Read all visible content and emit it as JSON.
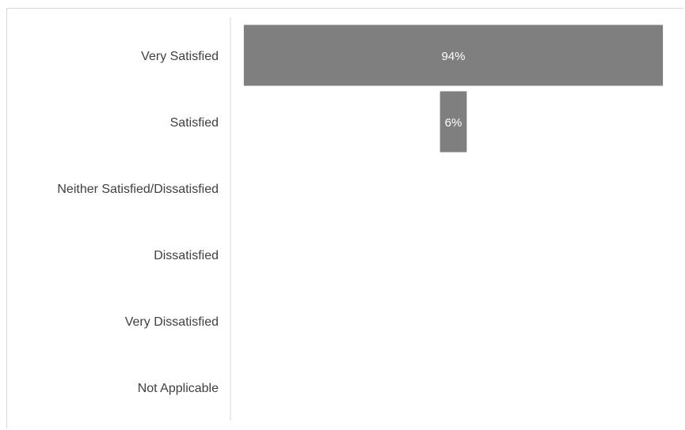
{
  "chart_data": {
    "type": "bar",
    "orientation": "horizontal",
    "categories": [
      "Very Satisfied",
      "Satisfied",
      "Neither Satisfied/Dissatisfied",
      "Dissatisfied",
      "Very Dissatisfied",
      "Not Applicable"
    ],
    "values": [
      94,
      6,
      0,
      0,
      0,
      0
    ],
    "data_labels": [
      "94%",
      "6%",
      "",
      "",
      "",
      ""
    ],
    "bar_alignment": "centered",
    "title": "",
    "xlabel": "",
    "ylabel": "",
    "xlim": [
      0,
      100
    ],
    "grid": false,
    "legend": "none",
    "bar_color": "#7f7f7f",
    "label_color": "#404040",
    "axis_color": "#d9d9d9"
  }
}
